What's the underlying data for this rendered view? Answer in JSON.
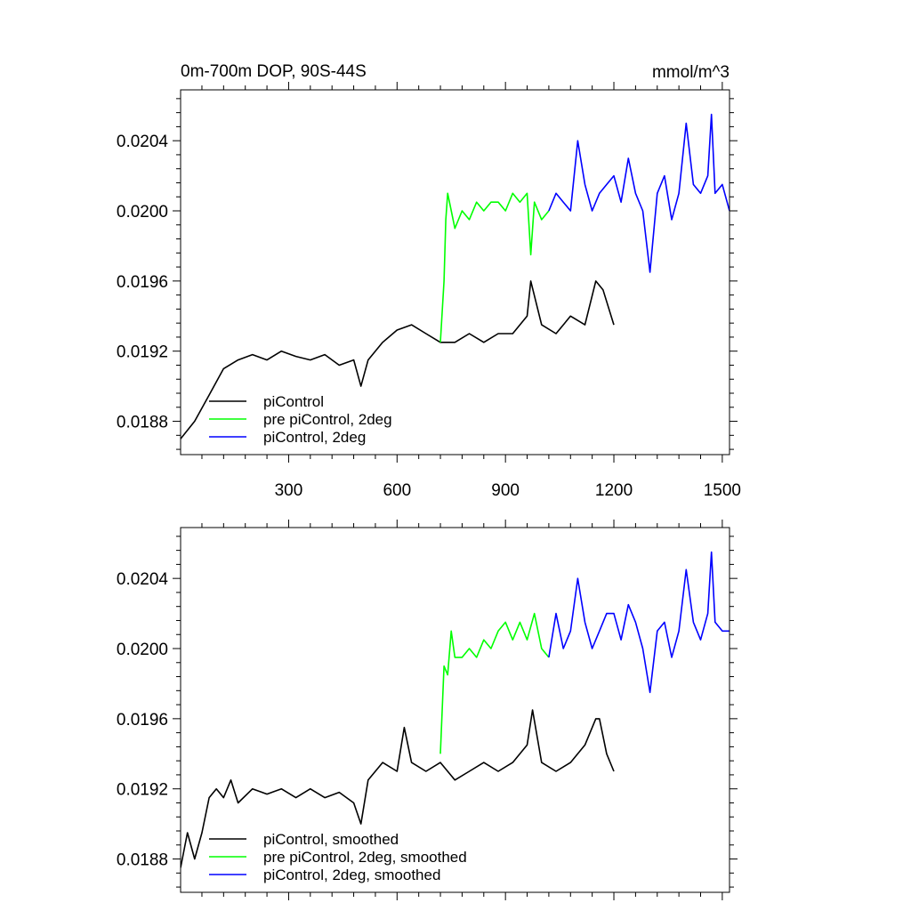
{
  "chart_data": [
    {
      "type": "line",
      "title": "0m-700m DOP, 90S-44S",
      "units": "mmol/m^3",
      "xlabel": "",
      "ylabel": "",
      "xlim": [
        1,
        1520
      ],
      "ylim": [
        0.01861,
        0.02069
      ],
      "xticks": [
        300,
        600,
        900,
        1200,
        1500
      ],
      "xtick_labels": [
        "300",
        "600",
        "900",
        "1200",
        "1500"
      ],
      "yticks": [
        0.0188,
        0.0192,
        0.0196,
        0.02,
        0.0204
      ],
      "ytick_labels": [
        "0.0188",
        "0.0192",
        "0.0196",
        "0.0200",
        "0.0204"
      ],
      "show_xtick_labels": true,
      "grid": false,
      "legend_position": "bottom-left",
      "series": [
        {
          "name": "piControl",
          "color": "#000000",
          "x": [
            1,
            40,
            80,
            120,
            160,
            200,
            240,
            280,
            320,
            360,
            400,
            440,
            480,
            500,
            520,
            560,
            600,
            640,
            680,
            720,
            760,
            800,
            840,
            880,
            920,
            960,
            970,
            1000,
            1040,
            1080,
            1120,
            1150,
            1170,
            1200
          ],
          "y": [
            0.0187,
            0.0188,
            0.01895,
            0.0191,
            0.01915,
            0.01918,
            0.01915,
            0.0192,
            0.01917,
            0.01915,
            0.01918,
            0.01912,
            0.01915,
            0.019,
            0.01915,
            0.01925,
            0.01932,
            0.01935,
            0.0193,
            0.01925,
            0.01925,
            0.0193,
            0.01925,
            0.0193,
            0.0193,
            0.0194,
            0.0196,
            0.01935,
            0.0193,
            0.0194,
            0.01935,
            0.0196,
            0.01955,
            0.01935
          ]
        },
        {
          "name": "pre piControl, 2deg",
          "color": "#00ff00",
          "x": [
            720,
            730,
            735,
            740,
            760,
            780,
            800,
            820,
            840,
            860,
            880,
            900,
            920,
            940,
            960,
            970,
            980,
            1000,
            1020
          ],
          "y": [
            0.01925,
            0.0196,
            0.01995,
            0.0201,
            0.0199,
            0.02,
            0.01995,
            0.02005,
            0.02,
            0.02005,
            0.02005,
            0.02,
            0.0201,
            0.02005,
            0.0201,
            0.01975,
            0.02005,
            0.01995,
            0.02
          ]
        },
        {
          "name": "piControl, 2deg",
          "color": "#0000ff",
          "x": [
            1020,
            1040,
            1060,
            1080,
            1100,
            1120,
            1140,
            1160,
            1180,
            1200,
            1220,
            1240,
            1260,
            1280,
            1300,
            1320,
            1340,
            1360,
            1380,
            1400,
            1420,
            1440,
            1460,
            1470,
            1480,
            1500,
            1520
          ],
          "y": [
            0.02,
            0.0201,
            0.02005,
            0.02,
            0.0204,
            0.02015,
            0.02,
            0.0201,
            0.02015,
            0.0202,
            0.02005,
            0.0203,
            0.0201,
            0.02,
            0.01965,
            0.0201,
            0.0202,
            0.01995,
            0.0201,
            0.0205,
            0.02015,
            0.0201,
            0.0202,
            0.02055,
            0.0201,
            0.02015,
            0.02
          ]
        }
      ],
      "legend": [
        {
          "label": "piControl",
          "color": "#000000"
        },
        {
          "label": "pre piControl, 2deg",
          "color": "#00ff00"
        },
        {
          "label": "piControl, 2deg",
          "color": "#0000ff"
        }
      ]
    },
    {
      "type": "line",
      "title": "",
      "units": "",
      "xlabel": "",
      "ylabel": "",
      "xlim": [
        1,
        1520
      ],
      "ylim": [
        0.01861,
        0.02069
      ],
      "xticks": [
        300,
        600,
        900,
        1200,
        1500
      ],
      "xtick_labels": [],
      "yticks": [
        0.0188,
        0.0192,
        0.0196,
        0.02,
        0.0204
      ],
      "ytick_labels": [
        "0.0188",
        "0.0192",
        "0.0196",
        "0.0200",
        "0.0204"
      ],
      "show_xtick_labels": false,
      "grid": false,
      "legend_position": "bottom-left",
      "series": [
        {
          "name": "piControl, smoothed",
          "color": "#000000",
          "x": [
            1,
            20,
            40,
            60,
            80,
            100,
            120,
            140,
            160,
            200,
            240,
            280,
            320,
            360,
            400,
            440,
            480,
            500,
            520,
            560,
            600,
            620,
            640,
            680,
            720,
            760,
            800,
            840,
            880,
            920,
            960,
            975,
            1000,
            1040,
            1080,
            1120,
            1150,
            1160,
            1180,
            1200
          ],
          "y": [
            0.01875,
            0.01895,
            0.0188,
            0.01895,
            0.01915,
            0.0192,
            0.01915,
            0.01925,
            0.01912,
            0.0192,
            0.01917,
            0.0192,
            0.01915,
            0.0192,
            0.01915,
            0.01918,
            0.01912,
            0.019,
            0.01925,
            0.01935,
            0.0193,
            0.01955,
            0.01935,
            0.0193,
            0.01935,
            0.01925,
            0.0193,
            0.01935,
            0.0193,
            0.01935,
            0.01945,
            0.01965,
            0.01935,
            0.0193,
            0.01935,
            0.01945,
            0.0196,
            0.0196,
            0.0194,
            0.0193
          ]
        },
        {
          "name": "pre piControl, 2deg, smoothed",
          "color": "#00ff00",
          "x": [
            720,
            730,
            740,
            750,
            760,
            780,
            800,
            820,
            840,
            860,
            880,
            900,
            920,
            940,
            960,
            980,
            1000,
            1020
          ],
          "y": [
            0.0194,
            0.0199,
            0.01985,
            0.0201,
            0.01995,
            0.01995,
            0.02,
            0.01995,
            0.02005,
            0.02,
            0.0201,
            0.02015,
            0.02005,
            0.02015,
            0.02005,
            0.0202,
            0.02,
            0.01995
          ]
        },
        {
          "name": "piControl, 2deg, smoothed",
          "color": "#0000ff",
          "x": [
            1020,
            1040,
            1060,
            1080,
            1100,
            1120,
            1140,
            1160,
            1180,
            1200,
            1220,
            1240,
            1260,
            1280,
            1300,
            1320,
            1340,
            1360,
            1380,
            1400,
            1420,
            1440,
            1460,
            1470,
            1480,
            1500,
            1520
          ],
          "y": [
            0.01995,
            0.0202,
            0.02,
            0.0201,
            0.0204,
            0.02015,
            0.02,
            0.0201,
            0.0202,
            0.0202,
            0.02005,
            0.02025,
            0.02015,
            0.02,
            0.01975,
            0.0201,
            0.02015,
            0.01995,
            0.0201,
            0.02045,
            0.02015,
            0.02005,
            0.0202,
            0.02055,
            0.02015,
            0.0201,
            0.0201
          ]
        }
      ],
      "legend": [
        {
          "label": "piControl, smoothed",
          "color": "#000000"
        },
        {
          "label": "pre piControl, 2deg, smoothed",
          "color": "#00ff00"
        },
        {
          "label": "piControl, 2deg, smoothed",
          "color": "#0000ff"
        }
      ]
    }
  ]
}
